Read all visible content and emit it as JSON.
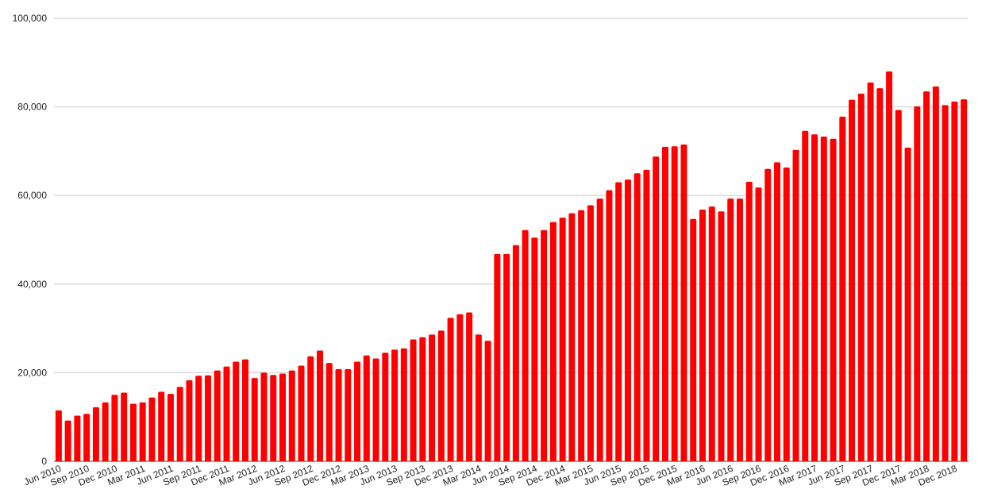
{
  "chart_data": {
    "type": "bar",
    "categories": [
      "Jun 2010",
      null,
      null,
      "Sep 2010",
      null,
      null,
      "Dec 2010",
      null,
      null,
      "Mar 2011",
      null,
      null,
      "Jun 2011",
      null,
      null,
      "Sep 2011",
      null,
      null,
      "Dec 2011",
      null,
      null,
      "Mar 2012",
      null,
      null,
      "Jun 2012",
      null,
      null,
      "Sep 2012",
      null,
      null,
      "Dec 2012",
      null,
      null,
      "Mar 2013",
      null,
      null,
      "Jun 2013",
      null,
      null,
      "Sep 2013",
      null,
      null,
      "Dec 2013",
      null,
      null,
      "Mar 2014",
      null,
      null,
      "Jun 2014",
      null,
      null,
      "Sep 2014",
      null,
      null,
      "Dec 2014",
      null,
      null,
      "Mar 2015",
      null,
      null,
      "Jun 2015",
      null,
      null,
      "Sep 2015",
      null,
      null,
      "Dec 2015",
      null,
      null,
      "Mar 2016",
      null,
      null,
      "Jun 2016",
      null,
      null,
      "Sep 2016",
      null,
      null,
      "Dec 2016",
      null,
      null,
      "Mar 2017",
      null,
      null,
      "Jun 2017",
      null,
      null,
      "Sep 2017",
      null,
      null,
      "Dec 2017",
      null,
      null,
      "Mar 2018",
      null,
      null,
      "Dec 2018",
      null
    ],
    "values": [
      11500,
      9200,
      10300,
      10700,
      12200,
      13300,
      15000,
      15500,
      13000,
      13300,
      14400,
      15700,
      15200,
      16800,
      18300,
      19300,
      19400,
      20500,
      21400,
      22500,
      23000,
      18800,
      20000,
      19500,
      19800,
      20500,
      21600,
      23700,
      25000,
      22200,
      20800,
      20800,
      22500,
      23900,
      23200,
      24500,
      25200,
      25500,
      27500,
      28000,
      28600,
      29500,
      32400,
      33200,
      33600,
      28600,
      27200,
      46800,
      46800,
      48800,
      52200,
      50500,
      52200,
      54000,
      55000,
      56000,
      56700,
      57800,
      59300,
      61200,
      63000,
      63600,
      65000,
      65800,
      68800,
      71000,
      71100,
      71500,
      54700,
      56800,
      57500,
      56400,
      59300,
      59300,
      63100,
      61800,
      66000,
      67500,
      66300,
      70300,
      74600,
      73800,
      73300,
      72800,
      77800,
      81600,
      83000,
      85500,
      84200,
      88000,
      79300,
      70800,
      80100,
      83500,
      84600,
      80400,
      81200,
      81700
    ],
    "color": "#ff0000",
    "ylim": [
      0,
      100000
    ],
    "yticks": [
      0,
      {
        "value": 20000,
        "label": "20,000"
      },
      {
        "value": 40000,
        "label": "40,000"
      },
      {
        "value": 60000,
        "label": "60,000"
      },
      {
        "value": 80000,
        "label": "80,000"
      },
      {
        "value": 100000,
        "label": "100,000"
      }
    ],
    "grid": true
  }
}
